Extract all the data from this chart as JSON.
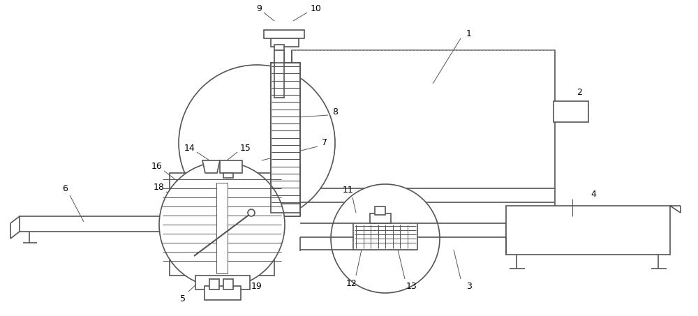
{
  "bg_color": "#ffffff",
  "line_color": "#555555",
  "line_width": 1.2,
  "thin_line": 0.7,
  "fig_width": 10.0,
  "fig_height": 4.53
}
